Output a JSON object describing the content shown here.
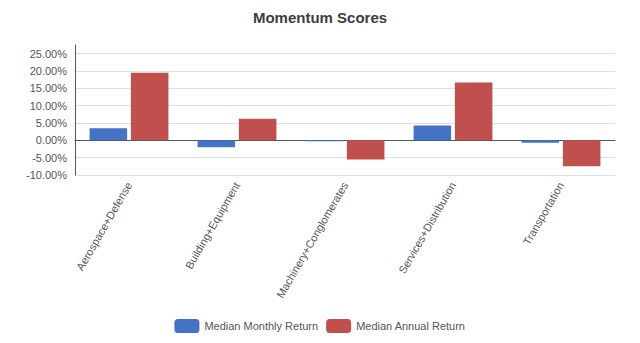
{
  "chart_data": {
    "type": "bar",
    "title": "Momentum Scores",
    "categories": [
      "Aerospace+Defense",
      "Building+Equipment",
      "Machinery+Conglomerates",
      "Services+Distribution",
      "Transportation"
    ],
    "series": [
      {
        "name": "Median Monthly Return",
        "color": "#4472C4",
        "values": [
          0.035,
          -0.02,
          -0.003,
          0.043,
          -0.007
        ]
      },
      {
        "name": "Median Annual Return",
        "color": "#C0504D",
        "values": [
          0.195,
          0.062,
          -0.055,
          0.167,
          -0.075
        ]
      }
    ],
    "ylim": [
      -0.1,
      0.275
    ],
    "yticks": [
      {
        "value": -0.1,
        "label": "-10.00%"
      },
      {
        "value": -0.05,
        "label": "-5.00%"
      },
      {
        "value": 0.0,
        "label": "0.00%"
      },
      {
        "value": 0.05,
        "label": "5.00%"
      },
      {
        "value": 0.1,
        "label": "10.00%"
      },
      {
        "value": 0.15,
        "label": "15.00%"
      },
      {
        "value": 0.2,
        "label": "20.00%"
      },
      {
        "value": 0.25,
        "label": "25.00%"
      }
    ],
    "grid": true,
    "legend": "bottom"
  }
}
